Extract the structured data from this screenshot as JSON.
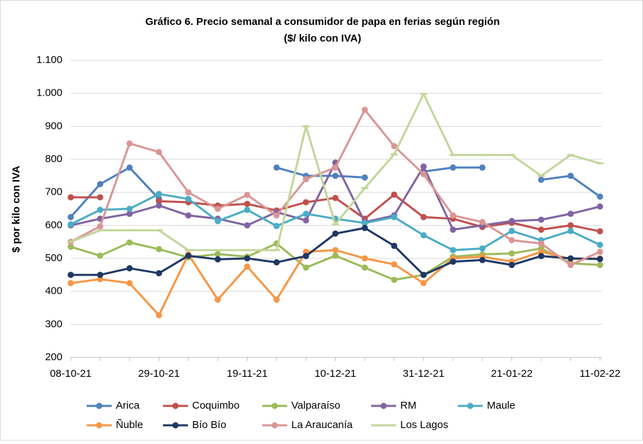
{
  "chart_data": {
    "type": "line",
    "title": "Gráfico 6. Precio semanal a consumidor de papa en ferias según región",
    "subtitle": "($/ kilo con IVA)",
    "y_label": "$ por kilo con IVA",
    "categories": [
      "08-10-21",
      null,
      null,
      "29-10-21",
      null,
      null,
      "19-11-21",
      null,
      null,
      "10-12-21",
      null,
      null,
      "31-12-21",
      null,
      null,
      "21-01-22",
      null,
      null,
      "11-02-22"
    ],
    "ylim": [
      200,
      1100
    ],
    "yticks": [
      200,
      300,
      400,
      500,
      600,
      700,
      800,
      900,
      {
        "value": 1000,
        "label": "1.000"
      },
      {
        "value": 1100,
        "label": "1.100"
      }
    ],
    "grid": true,
    "legend": "bottom",
    "series": [
      {
        "name": "Arica",
        "color": "#4f81bd",
        "marker": "circle",
        "values": [
          625,
          725,
          775,
          680,
          null,
          null,
          null,
          775,
          750,
          750,
          745,
          null,
          763,
          775,
          775,
          null,
          738,
          750,
          687
        ]
      },
      {
        "name": "Coquimbo",
        "color": "#c0504d",
        "marker": "circle",
        "values": [
          685,
          685,
          null,
          673,
          670,
          660,
          665,
          645,
          670,
          683,
          620,
          693,
          625,
          620,
          595,
          608,
          587,
          600,
          582
        ]
      },
      {
        "name": "Valparaíso",
        "color": "#9bbb59",
        "marker": "circle",
        "values": [
          535,
          508,
          548,
          528,
          503,
          513,
          505,
          545,
          472,
          508,
          472,
          435,
          450,
          505,
          512,
          515,
          530,
          485,
          480
        ]
      },
      {
        "name": "RM",
        "color": "#8064a2",
        "marker": "circle",
        "values": [
          600,
          620,
          635,
          660,
          630,
          620,
          600,
          640,
          615,
          790,
          610,
          630,
          778,
          587,
          600,
          613,
          617,
          635,
          657
        ]
      },
      {
        "name": "Maule",
        "color": "#4bacc6",
        "marker": "circle",
        "values": [
          603,
          647,
          650,
          695,
          680,
          613,
          647,
          598,
          635,
          620,
          607,
          625,
          570,
          525,
          530,
          583,
          555,
          583,
          541
        ]
      },
      {
        "name": "Ñuble",
        "color": "#f79646",
        "marker": "circle",
        "values": [
          425,
          437,
          425,
          328,
          512,
          375,
          475,
          375,
          520,
          525,
          500,
          482,
          425,
          500,
          505,
          490,
          520,
          498,
          500
        ]
      },
      {
        "name": "Bío Bío",
        "color": "#1f3864",
        "marker": "circle",
        "values": [
          450,
          450,
          470,
          455,
          508,
          497,
          500,
          488,
          507,
          575,
          592,
          538,
          450,
          490,
          495,
          480,
          507,
          500,
          498
        ]
      },
      {
        "name": "La Araucanía",
        "color": "#d99694",
        "marker": "circle",
        "values": [
          550,
          597,
          848,
          822,
          700,
          650,
          692,
          630,
          740,
          775,
          950,
          840,
          755,
          630,
          610,
          555,
          545,
          480,
          520
        ]
      },
      {
        "name": "Los Lagos",
        "color": "#c3d69b",
        "marker": "dash",
        "values": [
          550,
          585,
          585,
          585,
          525,
          525,
          525,
          525,
          900,
          603,
          713,
          815,
          998,
          813,
          813,
          813,
          750,
          813,
          788
        ]
      }
    ]
  }
}
